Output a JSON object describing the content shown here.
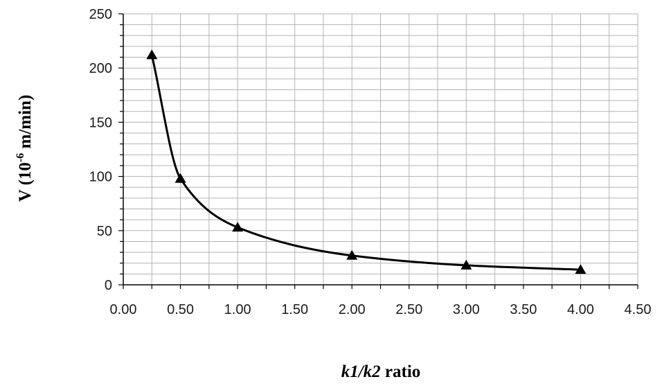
{
  "chart_data": {
    "type": "line",
    "title": "",
    "xlabel": {
      "italic_part": "k1/k2",
      "plain_part": " ratio"
    },
    "ylabel": {
      "prefix": "V (10",
      "superscript": "-6",
      "suffix": " m/min)"
    },
    "xlim": [
      0,
      4.5
    ],
    "ylim": [
      0,
      250
    ],
    "x_major_ticks": [
      "0.00",
      "0.50",
      "1.00",
      "1.50",
      "2.00",
      "2.50",
      "3.00",
      "3.50",
      "4.00",
      "4.50"
    ],
    "y_major_ticks": [
      "0",
      "50",
      "100",
      "150",
      "200",
      "250"
    ],
    "x_minor_step": 0.25,
    "y_minor_step": 10,
    "grid": true,
    "marker": "triangle",
    "line_color": "#000000",
    "grid_color": "#b3b3b3",
    "series": [
      {
        "x": [
          0.25,
          0.5,
          1.0,
          2.0,
          3.0,
          4.0
        ],
        "y": [
          212,
          98,
          53,
          27,
          18,
          14
        ]
      }
    ]
  }
}
